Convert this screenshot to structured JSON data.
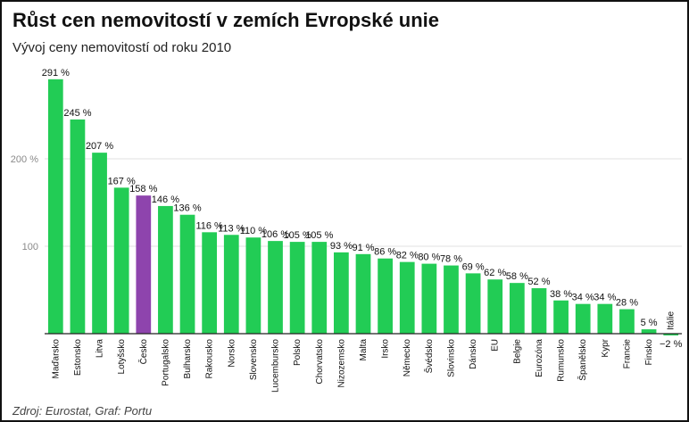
{
  "chart_data": {
    "type": "bar",
    "title": "Růst cen nemovitostí v zemích Evropské unie",
    "subtitle": "Vývoj ceny nemovitostí od roku 2010",
    "source": "Zdroj: Eurostat, Graf: Portu",
    "ylim": [
      -2,
      300
    ],
    "yticks": [
      100,
      200
    ],
    "ytick_labels": [
      "100",
      "200 %"
    ],
    "grid": true,
    "categories": [
      "Maďarsko",
      "Estonsko",
      "Litva",
      "Lotyšsko",
      "Česko",
      "Portugalsko",
      "Bulharsko",
      "Rakousko",
      "Norsko",
      "Slovensko",
      "Lucembursko",
      "Polsko",
      "Chorvatsko",
      "Nizozemsko",
      "Malta",
      "Irsko",
      "Německo",
      "Švédsko",
      "Slovinsko",
      "Dánsko",
      "EU",
      "Belgie",
      "Eurozóna",
      "Rumunsko",
      "Španělsko",
      "Kypr",
      "Francie",
      "Finsko",
      "Itálie"
    ],
    "values": [
      291,
      245,
      207,
      167,
      158,
      146,
      136,
      116,
      113,
      110,
      106,
      105,
      105,
      93,
      91,
      86,
      82,
      80,
      78,
      69,
      62,
      58,
      52,
      38,
      34,
      34,
      28,
      5,
      -2
    ],
    "value_labels": [
      "291 %",
      "245 %",
      "207 %",
      "167 %",
      "158 %",
      "146 %",
      "136 %",
      "116 %",
      "113 %",
      "110 %",
      "106 %",
      "105 %",
      "105 %",
      "93 %",
      "91 %",
      "86 %",
      "82 %",
      "80 %",
      "78 %",
      "69 %",
      "62 %",
      "58 %",
      "52 %",
      "38 %",
      "34 %",
      "34 %",
      "28 %",
      "5 %",
      "−2 %"
    ],
    "highlight": "Česko",
    "colors": {
      "bar": "#22cc55",
      "highlight": "#8e44ad",
      "grid": "#e2e2e2",
      "axis": "#222222"
    }
  }
}
